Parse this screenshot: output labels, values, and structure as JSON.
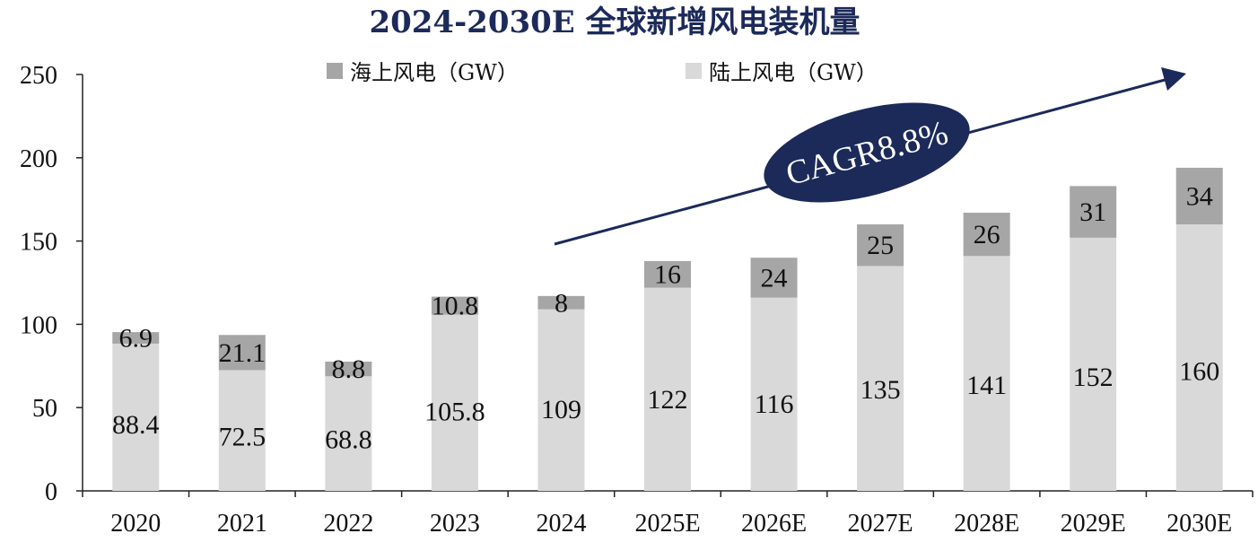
{
  "chart_data": {
    "type": "bar",
    "stacked": true,
    "title": "2024-2030E 全球新增风电装机量",
    "categories": [
      "2020",
      "2021",
      "2022",
      "2023",
      "2024",
      "2025E",
      "2026E",
      "2027E",
      "2028E",
      "2029E",
      "2030E"
    ],
    "series": [
      {
        "name": "陆上风电（GW）",
        "color": "#d9d9d9",
        "values": [
          88.4,
          72.5,
          68.8,
          105.8,
          109,
          122,
          116,
          135,
          141,
          152,
          160
        ]
      },
      {
        "name": "海上风电（GW）",
        "color": "#a6a6a6",
        "values": [
          6.9,
          21.1,
          8.8,
          10.8,
          8,
          16,
          24,
          25,
          26,
          31,
          34
        ]
      }
    ],
    "value_labels": [
      [
        "88.4",
        "72.5",
        "68.8",
        "105.8",
        "109",
        "122",
        "116",
        "135",
        "141",
        "152",
        "160"
      ],
      [
        "6.9",
        "21.1",
        "8.8",
        "10.8",
        "8",
        "16",
        "24",
        "25",
        "26",
        "31",
        "34"
      ]
    ],
    "ylim": [
      0,
      250
    ],
    "yticks": [
      "0",
      "50",
      "100",
      "150",
      "200",
      "250"
    ],
    "grid": false,
    "legend_position": "top",
    "annotation": {
      "text": "CAGR8.8%",
      "color": "#1c2a5a"
    }
  }
}
